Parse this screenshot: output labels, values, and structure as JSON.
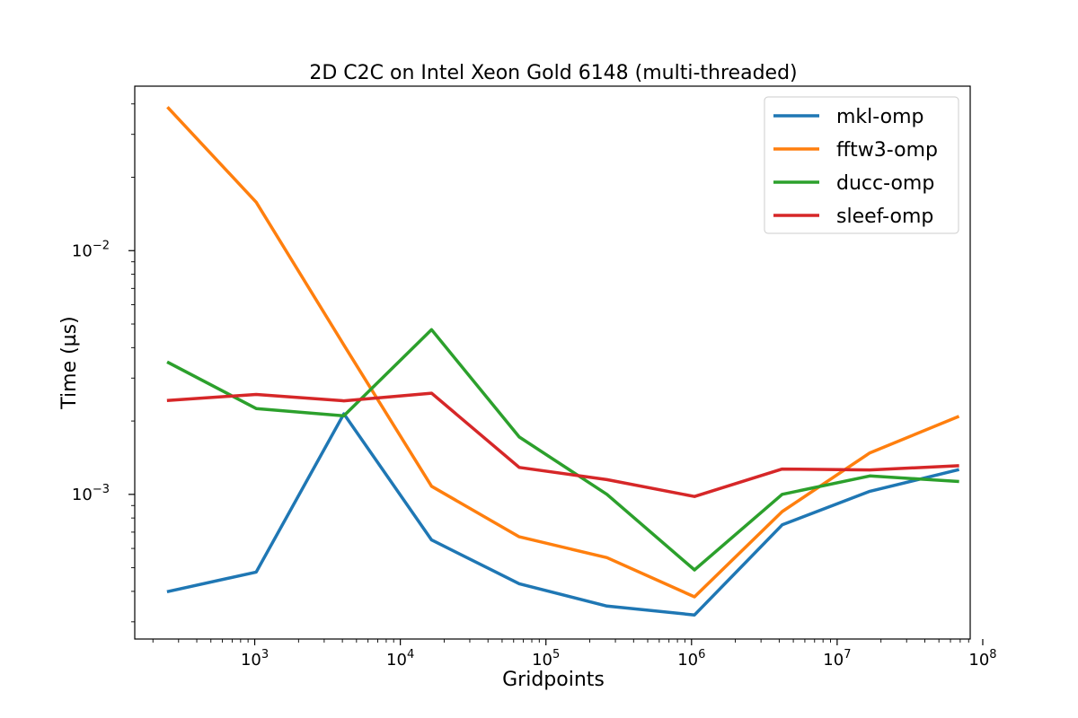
{
  "chart_data": {
    "type": "line",
    "title": "2D C2C on Intel Xeon Gold 6148 (multi-threaded)",
    "xlabel": "Gridpoints",
    "ylabel": "Time (µs)",
    "xscale": "log",
    "yscale": "log",
    "xlim": [
      150,
      82000000
    ],
    "ylim": [
      0.000255,
      0.0473
    ],
    "x_ticks": [
      {
        "value": 1000,
        "base": "10",
        "exp": "3"
      },
      {
        "value": 10000,
        "base": "10",
        "exp": "4"
      },
      {
        "value": 100000,
        "base": "10",
        "exp": "5"
      },
      {
        "value": 1000000,
        "base": "10",
        "exp": "6"
      },
      {
        "value": 10000000,
        "base": "10",
        "exp": "7"
      },
      {
        "value": 100000000,
        "base": "10",
        "exp": "8"
      }
    ],
    "y_ticks": [
      {
        "value": 0.001,
        "base": "10",
        "exp": "−3"
      },
      {
        "value": 0.01,
        "base": "10",
        "exp": "−2"
      }
    ],
    "grid": false,
    "legend_position": "top-right",
    "x": [
      256,
      1024,
      4096,
      16384,
      65536,
      262144,
      1048576,
      4194304,
      16777216,
      67108864
    ],
    "series": [
      {
        "name": "mkl-omp",
        "color": "#1f77b4",
        "values": [
          0.0004,
          0.00048,
          0.00214,
          0.00065,
          0.00043,
          0.000348,
          0.00032,
          0.00075,
          0.00103,
          0.00126
        ]
      },
      {
        "name": "fftw3-omp",
        "color": "#ff7f0e",
        "values": [
          0.0384,
          0.0158,
          0.0041,
          0.00108,
          0.00067,
          0.00055,
          0.00038,
          0.00085,
          0.00148,
          0.00208
        ]
      },
      {
        "name": "ducc-omp",
        "color": "#2ca02c",
        "values": [
          0.00347,
          0.00225,
          0.0021,
          0.00474,
          0.00172,
          0.001,
          0.00049,
          0.001,
          0.00119,
          0.00113
        ]
      },
      {
        "name": "sleef-omp",
        "color": "#d62728",
        "values": [
          0.00243,
          0.00257,
          0.00242,
          0.0026,
          0.00129,
          0.00115,
          0.00098,
          0.00127,
          0.00126,
          0.00131
        ]
      }
    ]
  }
}
